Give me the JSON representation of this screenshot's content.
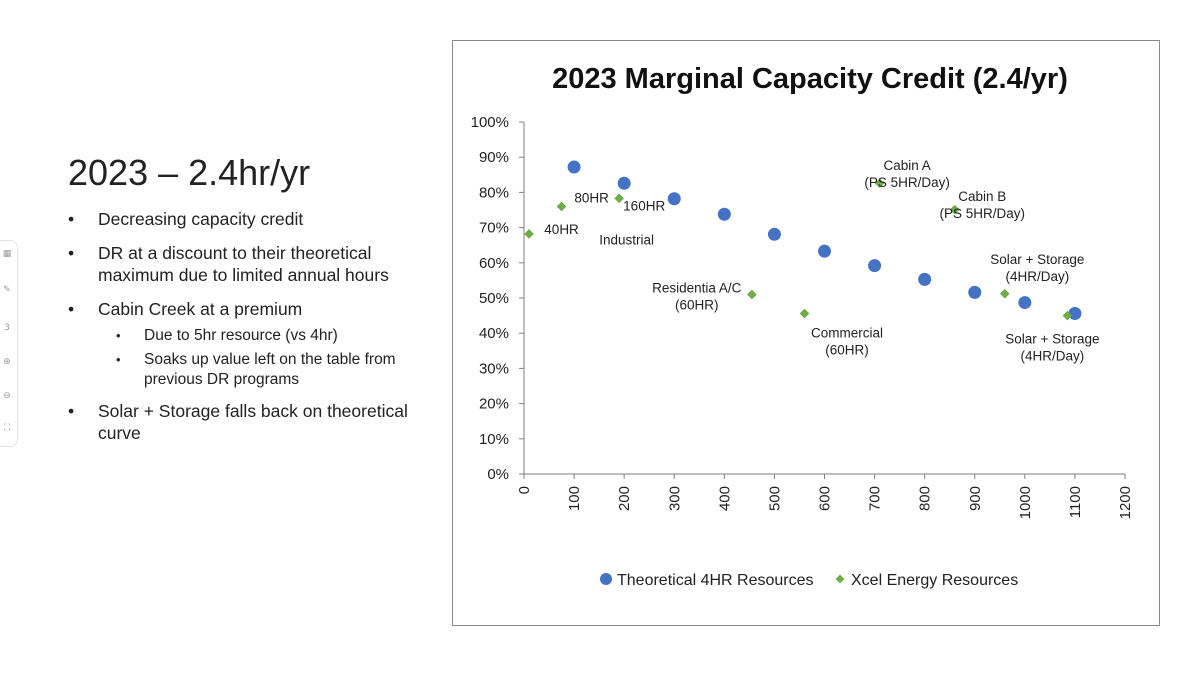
{
  "toolbar": {
    "icons": [
      "grid-icon",
      "pen-icon",
      "page-indicator-icon",
      "zoom-in-icon",
      "zoom-out-icon",
      "fit-icon"
    ],
    "page_label": "3"
  },
  "slide": {
    "title": "2023 – 2.4hr/yr",
    "bullets": [
      {
        "text": "Decreasing capacity credit",
        "level": 1
      },
      {
        "text": "DR at a discount to their theoretical maximum due to limited annual hours",
        "level": 1
      },
      {
        "text": "Cabin Creek at a premium",
        "level": 1
      },
      {
        "text": "Due to 5hr resource (vs 4hr)",
        "level": 2
      },
      {
        "text": "Soaks up value left on the table from previous DR programs",
        "level": 2
      },
      {
        "text": "Solar + Storage falls back on theoretical curve",
        "level": 1
      }
    ]
  },
  "chart_data": {
    "type": "scatter",
    "title": "2023 Marginal Capacity Credit (2.4/yr)",
    "xlabel": "",
    "ylabel": "",
    "xlim": [
      0,
      1200
    ],
    "ylim": [
      0,
      100
    ],
    "x_ticks": [
      0,
      100,
      200,
      300,
      400,
      500,
      600,
      700,
      800,
      900,
      1000,
      1100,
      1200
    ],
    "y_ticks": [
      0,
      10,
      20,
      30,
      40,
      50,
      60,
      70,
      80,
      90,
      100
    ],
    "y_tick_format": "percent",
    "grid": false,
    "legend_position": "bottom",
    "series": [
      {
        "name": "Theoretical 4HR Resources",
        "marker": "circle",
        "color": "#4472C4",
        "points": [
          {
            "x": 100,
            "y": 87.2
          },
          {
            "x": 200,
            "y": 82.6
          },
          {
            "x": 300,
            "y": 78.2
          },
          {
            "x": 400,
            "y": 73.8
          },
          {
            "x": 500,
            "y": 68.1
          },
          {
            "x": 600,
            "y": 63.3
          },
          {
            "x": 700,
            "y": 59.2
          },
          {
            "x": 800,
            "y": 55.3
          },
          {
            "x": 900,
            "y": 51.6
          },
          {
            "x": 1000,
            "y": 48.7
          },
          {
            "x": 1100,
            "y": 45.6
          }
        ]
      },
      {
        "name": "Xcel Energy Resources",
        "marker": "diamond",
        "color": "#70AD47",
        "points": [
          {
            "x": 10,
            "y": 68.2
          },
          {
            "x": 75,
            "y": 76.0
          },
          {
            "x": 190,
            "y": 78.3
          },
          {
            "x": 455,
            "y": 51.0
          },
          {
            "x": 560,
            "y": 45.6
          },
          {
            "x": 710,
            "y": 82.6
          },
          {
            "x": 860,
            "y": 75.1
          },
          {
            "x": 960,
            "y": 51.2
          },
          {
            "x": 1085,
            "y": 45.0
          }
        ]
      }
    ],
    "annotations": [
      {
        "lines": [
          "40HR"
        ],
        "x": 75,
        "y": 68.2
      },
      {
        "lines": [
          "80HR"
        ],
        "x": 135,
        "y": 77.2
      },
      {
        "lines": [
          "160HR"
        ],
        "x": 240,
        "y": 74.8
      },
      {
        "lines": [
          "Industrial"
        ],
        "x": 205,
        "y": 65.2
      },
      {
        "lines": [
          "Cabin A",
          "(PS 5HR/Day)"
        ],
        "x": 765,
        "y": 86.4
      },
      {
        "lines": [
          "Cabin B",
          "(PS 5HR/Day)"
        ],
        "x": 915,
        "y": 77.5
      },
      {
        "lines": [
          "Solar + Storage",
          "(4HR/Day)"
        ],
        "x": 1025,
        "y": 59.6
      },
      {
        "lines": [
          "Residentia A/C",
          "(60HR)"
        ],
        "x": 345,
        "y": 51.6
      },
      {
        "lines": [
          "Commercial",
          "(60HR)"
        ],
        "x": 645,
        "y": 38.8
      },
      {
        "lines": [
          "Solar + Storage",
          "(4HR/Day)"
        ],
        "x": 1055,
        "y": 37.1
      }
    ]
  }
}
